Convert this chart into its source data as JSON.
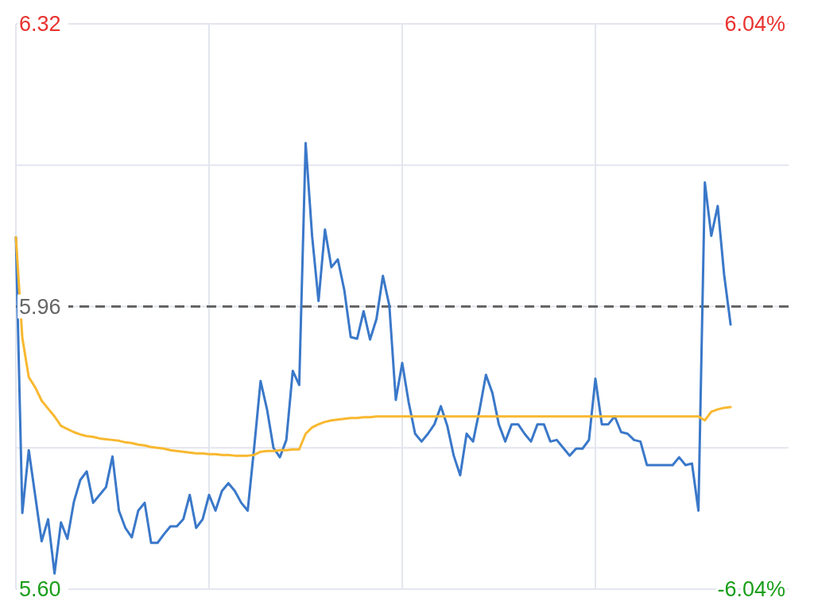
{
  "chart_data": {
    "type": "line",
    "categories": [
      null,
      null,
      null,
      null,
      null,
      null,
      null,
      null,
      null,
      null,
      null,
      null,
      null,
      null,
      null,
      null,
      null,
      null,
      null,
      null,
      null,
      null,
      null,
      null,
      null,
      null,
      null,
      null,
      null,
      null,
      null,
      null,
      null,
      null,
      null,
      null,
      null,
      null,
      null,
      null,
      null,
      null,
      null,
      null,
      null,
      null,
      null,
      null,
      null,
      null,
      null,
      null,
      null,
      null,
      null,
      null,
      null,
      null,
      null,
      null,
      null,
      null,
      null,
      null,
      null,
      null,
      null,
      null,
      null,
      null,
      null,
      null,
      null,
      null,
      null,
      null,
      null,
      null,
      null,
      null,
      null,
      null,
      null,
      null,
      null,
      null,
      null,
      null,
      null,
      null,
      null,
      null,
      null,
      null,
      null,
      null,
      null,
      null,
      null,
      null,
      null,
      null,
      null,
      null,
      null,
      null,
      null,
      null,
      null,
      null,
      null,
      null,
      null,
      null,
      null,
      null,
      null,
      null,
      null,
      null,
      null
    ],
    "ylim": [
      5.6,
      6.32
    ],
    "yticks": [
      {
        "value": 5.6,
        "label": "5.60"
      },
      {
        "value": 5.78,
        "label": null
      },
      {
        "value": 5.96,
        "label": "5.96"
      },
      {
        "value": 6.14,
        "label": null
      },
      {
        "value": 6.32,
        "label": "6.32"
      }
    ],
    "y2lim": [
      -6.04,
      6.04
    ],
    "y2ticks": [
      {
        "value": -6.04,
        "label": "-6.04%"
      },
      {
        "value": 6.04,
        "label": "6.04%"
      }
    ],
    "grid": true,
    "ref_lines": [
      {
        "axis": "y",
        "value": 5.96,
        "color": "#666666",
        "line_style": "dashed"
      }
    ],
    "series": [
      {
        "color": "#3a78c9",
        "values": [
          6.048,
          5.697,
          5.777,
          5.719,
          5.661,
          5.689,
          5.62,
          5.685,
          5.664,
          5.711,
          5.739,
          5.75,
          5.71,
          5.72,
          5.73,
          5.769,
          5.7,
          5.678,
          5.666,
          5.7,
          5.71,
          5.659,
          5.659,
          5.67,
          5.68,
          5.68,
          5.689,
          5.72,
          5.678,
          5.689,
          5.72,
          5.7,
          5.725,
          5.735,
          5.725,
          5.71,
          5.7,
          5.78,
          5.865,
          5.829,
          5.78,
          5.768,
          5.79,
          5.878,
          5.86,
          6.168,
          6.05,
          5.967,
          6.058,
          6.01,
          6.02,
          5.981,
          5.921,
          5.919,
          5.954,
          5.918,
          5.944,
          5.999,
          5.961,
          5.841,
          5.888,
          5.838,
          5.798,
          5.788,
          5.798,
          5.81,
          5.833,
          5.808,
          5.77,
          5.745,
          5.798,
          5.788,
          5.828,
          5.873,
          5.85,
          5.81,
          5.788,
          5.81,
          5.81,
          5.798,
          5.788,
          5.81,
          5.81,
          5.788,
          5.79,
          5.78,
          5.77,
          5.779,
          5.779,
          5.79,
          5.868,
          5.81,
          5.81,
          5.82,
          5.8,
          5.798,
          5.79,
          5.788,
          5.758,
          5.758,
          5.758,
          5.758,
          5.758,
          5.768,
          5.758,
          5.76,
          5.7,
          6.118,
          6.05,
          6.088,
          6.0,
          5.937,
          null,
          null,
          null,
          null,
          null,
          null,
          null,
          null,
          null
        ]
      },
      {
        "color": "#f8b830",
        "values": [
          6.048,
          5.92,
          5.87,
          5.857,
          5.84,
          5.83,
          5.82,
          5.808,
          5.804,
          5.8,
          5.797,
          5.795,
          5.794,
          5.792,
          5.791,
          5.79,
          5.789,
          5.787,
          5.786,
          5.784,
          5.783,
          5.781,
          5.78,
          5.779,
          5.777,
          5.776,
          5.775,
          5.774,
          5.773,
          5.773,
          5.772,
          5.772,
          5.771,
          5.771,
          5.77,
          5.77,
          5.77,
          5.771,
          5.775,
          5.776,
          5.776,
          5.777,
          5.777,
          5.778,
          5.778,
          5.798,
          5.806,
          5.81,
          5.813,
          5.815,
          5.816,
          5.817,
          5.818,
          5.818,
          5.819,
          5.819,
          5.82,
          5.82,
          5.82,
          5.82,
          5.82,
          5.82,
          5.82,
          5.82,
          5.82,
          5.82,
          5.82,
          5.82,
          5.82,
          5.82,
          5.82,
          5.82,
          5.82,
          5.82,
          5.82,
          5.82,
          5.82,
          5.82,
          5.82,
          5.82,
          5.82,
          5.82,
          5.82,
          5.82,
          5.82,
          5.82,
          5.82,
          5.82,
          5.82,
          5.82,
          5.82,
          5.82,
          5.82,
          5.82,
          5.82,
          5.82,
          5.82,
          5.82,
          5.82,
          5.82,
          5.82,
          5.82,
          5.82,
          5.82,
          5.82,
          5.82,
          5.82,
          5.815,
          5.826,
          5.829,
          5.831,
          5.832,
          null,
          null,
          null,
          null,
          null,
          null,
          null,
          null,
          null
        ]
      }
    ]
  }
}
